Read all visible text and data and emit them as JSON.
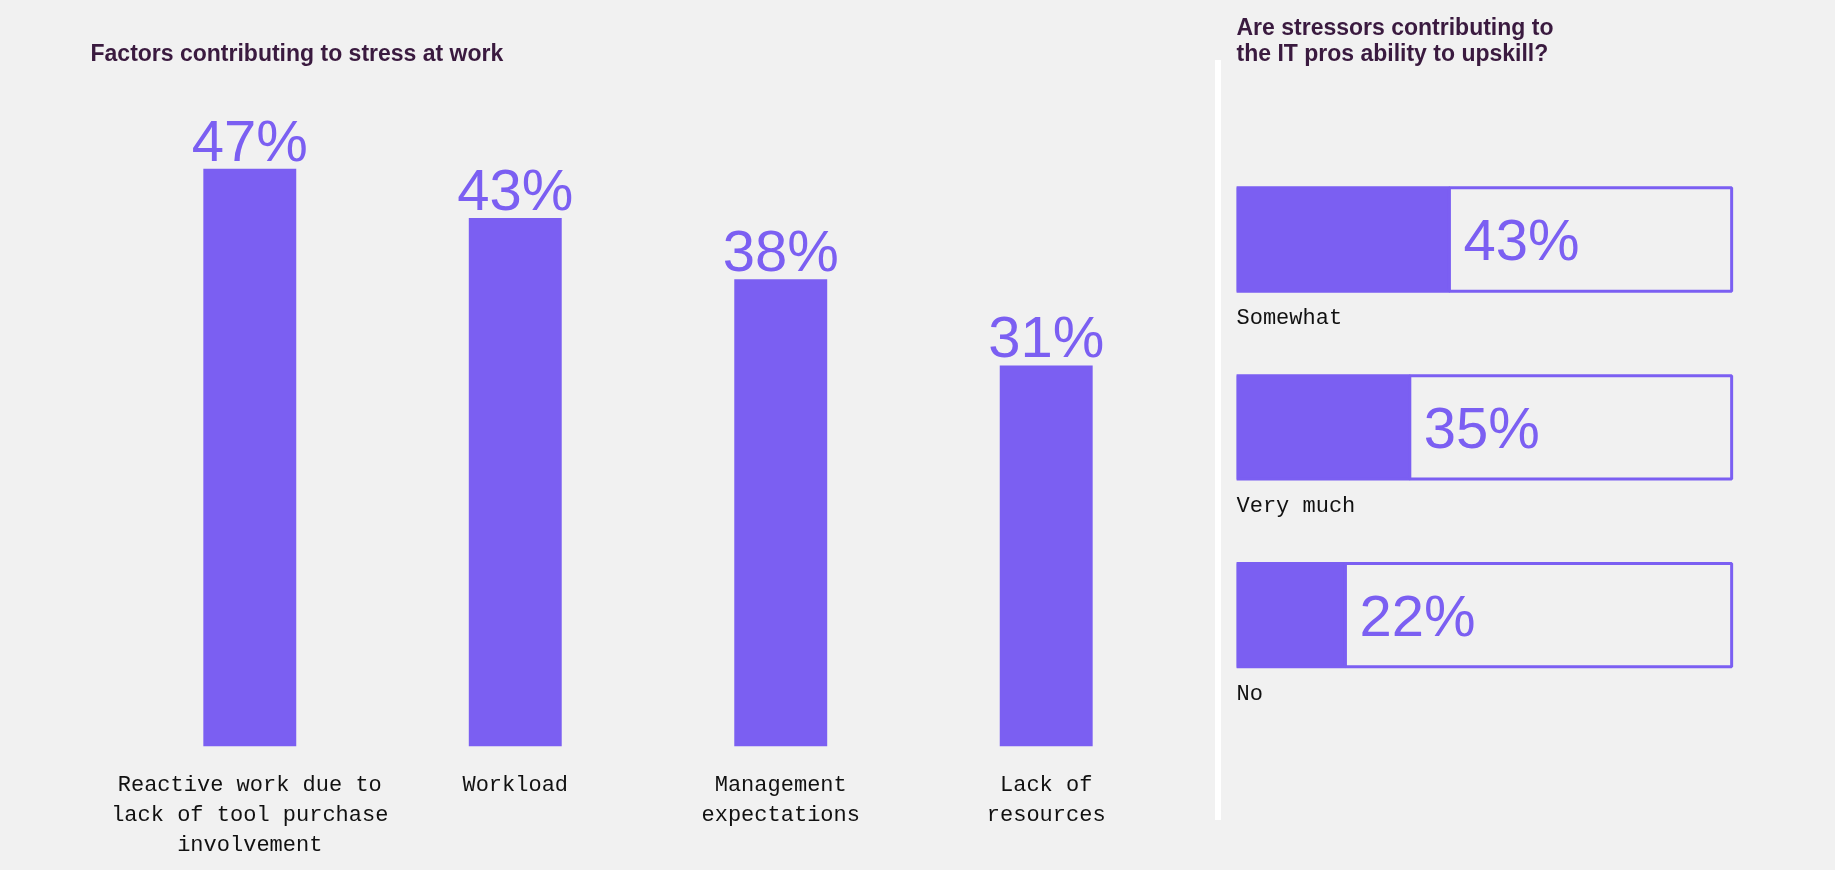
{
  "chart_data": [
    {
      "type": "bar",
      "title": "Factors contributing to stress at work",
      "categories": [
        "Reactive work due to\nlack of tool purchase\ninvolvement",
        "Workload",
        "Management\nexpectations",
        "Lack of\nresources"
      ],
      "values": [
        47,
        43,
        38,
        31
      ],
      "color": "#7b5ff2",
      "data_labels": true,
      "value_labels": [
        "47%",
        "43%",
        "38%",
        "31%"
      ],
      "tick_labels": "x"
    },
    {
      "type": "bar",
      "orientation": "horizontal",
      "stacked": true,
      "title": "Are stressors contributing to\nthe IT pros ability to upskill?",
      "categories": [
        "Somewhat",
        "Very much",
        "No"
      ],
      "series": [
        {
          "color": "#7b5ff2",
          "values": [
            43,
            35,
            22
          ],
          "value_labels": [
            "43%",
            "35%",
            "22%"
          ]
        },
        {
          "color": "#f1f1f1",
          "values": [
            57,
            65,
            78
          ]
        }
      ],
      "tick_labels": "y"
    }
  ]
}
